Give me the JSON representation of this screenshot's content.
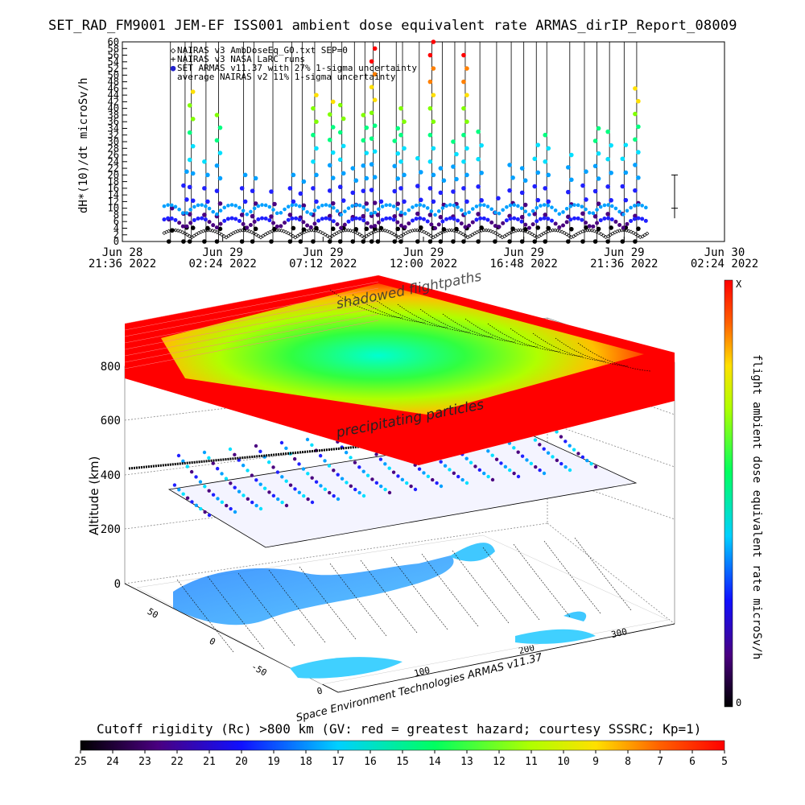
{
  "title": "SET_RAD_FM9001  JEM-EF ISS001 ambient dose equivalent rate ARMAS_dirIP_Report_08009",
  "colors": {
    "nairas_v3": "#000000",
    "armas": "#2222cc",
    "scale_hazard": "#ff0000",
    "scale_low": "#000000"
  },
  "legend": [
    {
      "symbol": "◇",
      "label": "NAIRAS v3 AmbDoseEq_G0.txt SEP=0"
    },
    {
      "symbol": "+",
      "label": "NAIRAS v3 NASA LaRC runs"
    },
    {
      "symbol": "●",
      "label": "SET ARMAS v11.37 with 27% 1-sigma uncertainty"
    },
    {
      "symbol": "",
      "label": "average NAIRAS v2 11% 1-sigma uncertainty"
    }
  ],
  "chart_data": [
    {
      "type": "scatter",
      "title": "SET_RAD_FM9001  JEM-EF ISS001 ambient dose equivalent rate ARMAS_dirIP_Report_08009",
      "ylabel": "dH*(10)/dt microSv/h",
      "ylim": [
        0,
        60
      ],
      "yticks": [
        "0",
        "2",
        "4",
        "6",
        "8",
        "10",
        "12",
        "14",
        "16",
        "18",
        "20",
        "22",
        "24",
        "26",
        "28",
        "30",
        "32",
        "34",
        "36",
        "38",
        "40",
        "42",
        "44",
        "46",
        "48",
        "50",
        "52",
        "54",
        "56",
        "58",
        "60"
      ],
      "xticks": [
        {
          "date": "Jun 28",
          "time": "21:36",
          "year": "2022"
        },
        {
          "date": "Jun 29",
          "time": "02:24",
          "year": "2022"
        },
        {
          "date": "Jun 29",
          "time": "07:12",
          "year": "2022"
        },
        {
          "date": "Jun 29",
          "time": "12:00",
          "year": "2022"
        },
        {
          "date": "Jun 29",
          "time": "16:48",
          "year": "2022"
        },
        {
          "date": "Jun 29",
          "time": "21:36",
          "year": "2022"
        },
        {
          "date": "Jun 30",
          "time": "02:24",
          "year": "2022"
        }
      ],
      "xlim_hours": [
        0,
        28.8
      ],
      "series": [
        {
          "name": "NAIRAS v3 AmbDoseEq_G0.txt SEP=0",
          "marker": "diamond",
          "x_hours": [
            2.0,
            3.5,
            5.0,
            6.5,
            8.0,
            9.5,
            11.0,
            12.5,
            14.0,
            15.5,
            17.0,
            18.5,
            20.0,
            21.5,
            23.0,
            24.5
          ],
          "y": [
            3,
            2,
            4,
            2,
            3,
            4,
            2,
            3,
            4,
            2,
            3,
            4,
            2,
            3,
            4,
            3
          ]
        },
        {
          "name": "SET ARMAS v11.37 with 27% 1-sigma uncertainty",
          "marker": "circle",
          "x_hours": [
            2.3,
            3.0,
            3.3,
            4.0,
            4.6,
            5.8,
            6.3,
            7.2,
            8.1,
            8.6,
            9.2,
            10.0,
            10.5,
            11.1,
            11.6,
            12.0,
            12.3,
            13.1,
            13.4,
            14.2,
            14.8,
            15.3,
            15.9,
            16.4,
            17.1,
            17.9,
            18.6,
            19.2,
            19.8,
            20.3,
            21.4,
            22.1,
            22.7,
            23.3,
            24.0,
            24.6
          ],
          "y": [
            10,
            21,
            45,
            24,
            38,
            20,
            19,
            15,
            20,
            18,
            44,
            42,
            41,
            22,
            38,
            58,
            12,
            34,
            40,
            25,
            60,
            22,
            30,
            56,
            33,
            13,
            23,
            22,
            29,
            32,
            26,
            21,
            34,
            33,
            29,
            46
          ]
        }
      ]
    },
    {
      "type": "scatter",
      "title": "",
      "zlabel": "Altitude (km)",
      "zticks": [
        "0",
        "200",
        "400",
        "600",
        "800"
      ],
      "lon_ticks": [
        "0",
        "100",
        "200",
        "300"
      ],
      "lat_ticks": [
        "50",
        "0",
        "-50"
      ],
      "annotations": [
        "shadowed flightpaths",
        "precipitating particles"
      ],
      "credit": "Space Environment Technologies ARMAS v11.37",
      "colorbar_vertical": {
        "label": "flight ambient dose equivalent rate microSv/h",
        "max_label": "X",
        "min_label": "0"
      },
      "colorbar_horizontal": {
        "label": "Cutoff rigidity (Rc) >800 km (GV: red = greatest hazard; courtesy SSSRC; Kp=1)",
        "ticks": [
          "25",
          "24",
          "23",
          "22",
          "21",
          "20",
          "19",
          "18",
          "17",
          "16",
          "15",
          "14",
          "13",
          "12",
          "11",
          "10",
          "9",
          "8",
          "7",
          "6",
          "5"
        ]
      }
    }
  ]
}
